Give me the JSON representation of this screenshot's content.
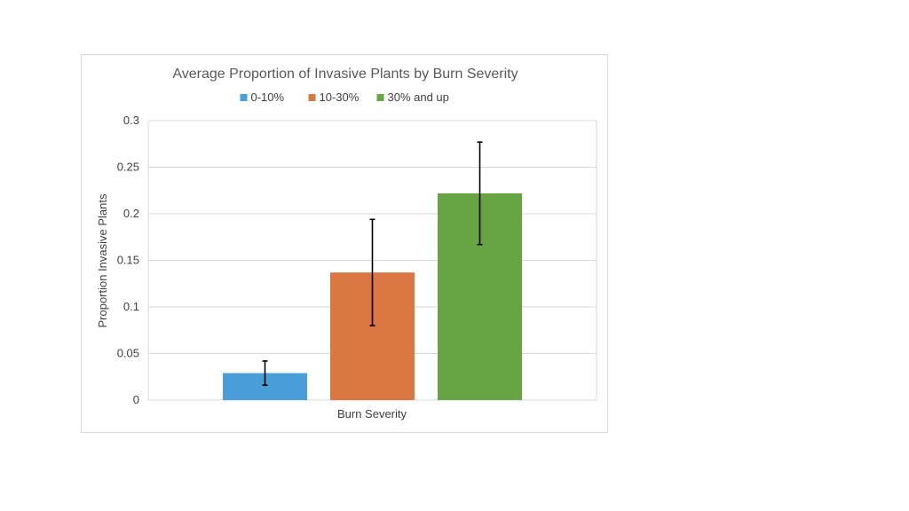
{
  "chart_data": {
    "type": "bar",
    "title": "Average Proportion of Invasive Plants by Burn Severity",
    "xlabel": "Burn Severity",
    "ylabel": "Proportion Invasive Plants",
    "ylim": [
      0,
      0.3
    ],
    "yticks": [
      0,
      0.05,
      0.1,
      0.15,
      0.2,
      0.25,
      0.3
    ],
    "ytick_labels": [
      "0",
      "0.05",
      "0.1",
      "0.15",
      "0.2",
      "0.25",
      "0.3"
    ],
    "grid": true,
    "legend_position": "top",
    "categories": [
      "Burn Severity"
    ],
    "series": [
      {
        "name": "0-10%",
        "values": [
          0.029
        ],
        "error": [
          0.013
        ],
        "color": "#4a9fd8"
      },
      {
        "name": "10-30%",
        "values": [
          0.137
        ],
        "error": [
          0.057
        ],
        "color": "#da7742"
      },
      {
        "name": "30% and up",
        "values": [
          0.222
        ],
        "error": [
          0.055
        ],
        "color": "#67a544"
      }
    ]
  }
}
